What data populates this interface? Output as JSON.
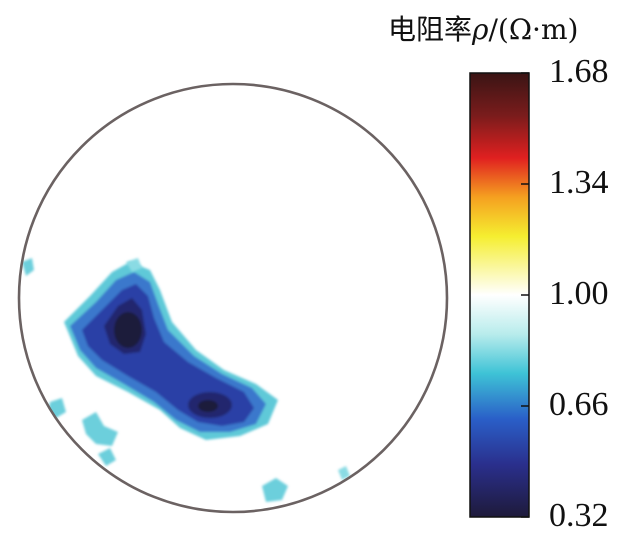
{
  "chart_data": {
    "type": "heatmap",
    "title": "电阻率ρ/(Ω·m)",
    "title_parts": {
      "cjk": "电阻率",
      "symbol": "ρ",
      "unit": "/(Ω·m)"
    },
    "colorbar": {
      "min": 0.32,
      "max": 1.68,
      "ticks": [
        "1.68",
        "1.34",
        "1.00",
        "0.66",
        "0.32"
      ],
      "stops": [
        {
          "value": 1.68,
          "color": "#3a1414"
        },
        {
          "value": 1.55,
          "color": "#7a1c1c"
        },
        {
          "value": 1.42,
          "color": "#e02020"
        },
        {
          "value": 1.3,
          "color": "#f5a020"
        },
        {
          "value": 1.18,
          "color": "#f5ee30"
        },
        {
          "value": 1.0,
          "color": "#ffffff"
        },
        {
          "value": 0.88,
          "color": "#b8ecec"
        },
        {
          "value": 0.76,
          "color": "#3ec3d6"
        },
        {
          "value": 0.62,
          "color": "#2a5fc8"
        },
        {
          "value": 0.48,
          "color": "#2a2f8c"
        },
        {
          "value": 0.32,
          "color": "#1e1a3a"
        }
      ]
    },
    "domain_shape": "circle",
    "background_value": 1.0,
    "anomalies": [
      {
        "name": "main-low-resistivity-zone",
        "min_value": 0.35,
        "description": "elongated dark blue region, left-centre to lower-centre"
      },
      {
        "name": "scattered-edge-patches",
        "min_value": 0.78
      }
    ]
  }
}
